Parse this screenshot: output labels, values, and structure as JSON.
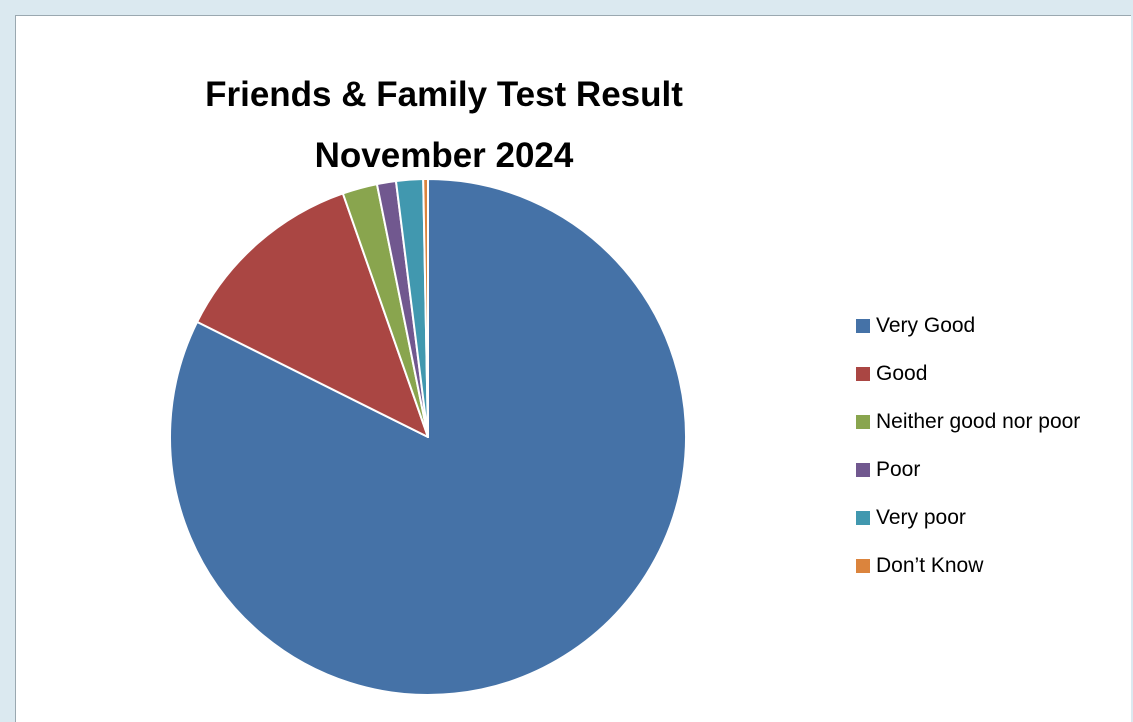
{
  "chart_data": {
    "type": "pie",
    "title_line1": "Friends & Family Test Result",
    "title_line2": "November 2024",
    "legend_position": "right",
    "slices": [
      {
        "label": "Very Good",
        "value": 83.1,
        "color": "#4572a7"
      },
      {
        "label": "Good",
        "value": 12.4,
        "color": "#aa4643"
      },
      {
        "label": "Neither good nor poor",
        "value": 2.2,
        "color": "#89a54e"
      },
      {
        "label": "Poor",
        "value": 1.2,
        "color": "#71588f"
      },
      {
        "label": "Very poor",
        "value": 1.7,
        "color": "#4198af"
      },
      {
        "label": "Don’t Know",
        "value": 0.3,
        "color": "#db843d"
      }
    ]
  }
}
